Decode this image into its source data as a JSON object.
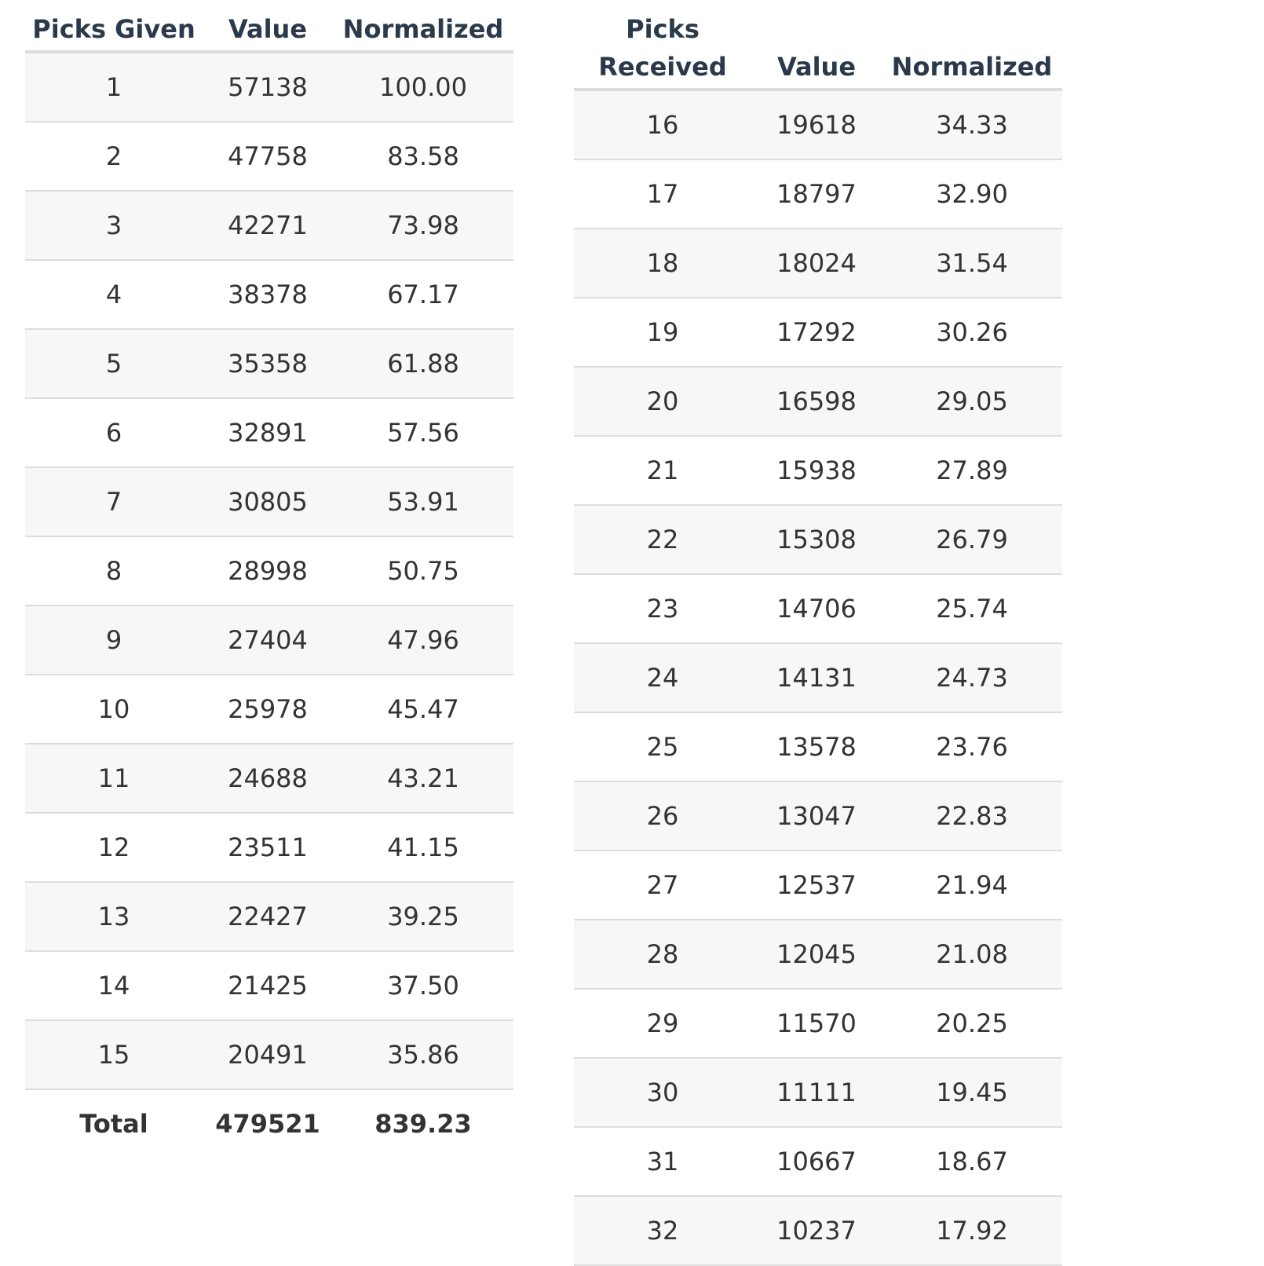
{
  "given": {
    "headers": [
      "Picks Given",
      "Value",
      "Normalized"
    ],
    "rows": [
      [
        "1",
        "57138",
        "100.00"
      ],
      [
        "2",
        "47758",
        "83.58"
      ],
      [
        "3",
        "42271",
        "73.98"
      ],
      [
        "4",
        "38378",
        "67.17"
      ],
      [
        "5",
        "35358",
        "61.88"
      ],
      [
        "6",
        "32891",
        "57.56"
      ],
      [
        "7",
        "30805",
        "53.91"
      ],
      [
        "8",
        "28998",
        "50.75"
      ],
      [
        "9",
        "27404",
        "47.96"
      ],
      [
        "10",
        "25978",
        "45.47"
      ],
      [
        "11",
        "24688",
        "43.21"
      ],
      [
        "12",
        "23511",
        "41.15"
      ],
      [
        "13",
        "22427",
        "39.25"
      ],
      [
        "14",
        "21425",
        "37.50"
      ],
      [
        "15",
        "20491",
        "35.86"
      ]
    ],
    "total": [
      "Total",
      "479521",
      "839.23"
    ]
  },
  "received": {
    "headers": [
      "Picks\nReceived",
      "Value",
      "Normalized"
    ],
    "rows": [
      [
        "16",
        "19618",
        "34.33"
      ],
      [
        "17",
        "18797",
        "32.90"
      ],
      [
        "18",
        "18024",
        "31.54"
      ],
      [
        "19",
        "17292",
        "30.26"
      ],
      [
        "20",
        "16598",
        "29.05"
      ],
      [
        "21",
        "15938",
        "27.89"
      ],
      [
        "22",
        "15308",
        "26.79"
      ],
      [
        "23",
        "14706",
        "25.74"
      ],
      [
        "24",
        "14131",
        "24.73"
      ],
      [
        "25",
        "13578",
        "23.76"
      ],
      [
        "26",
        "13047",
        "22.83"
      ],
      [
        "27",
        "12537",
        "21.94"
      ],
      [
        "28",
        "12045",
        "21.08"
      ],
      [
        "29",
        "11570",
        "20.25"
      ],
      [
        "30",
        "11111",
        "19.45"
      ],
      [
        "31",
        "10667",
        "18.67"
      ],
      [
        "32",
        "10237",
        "17.92"
      ]
    ]
  },
  "colors": {
    "header_text": "#2b3a4a",
    "body_text": "#333333",
    "stripe": "#f7f7f7",
    "rule": "#dddddd"
  }
}
